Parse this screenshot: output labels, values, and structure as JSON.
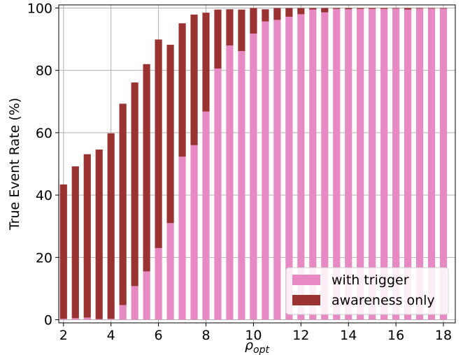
{
  "chart_data": {
    "type": "bar",
    "stacked": true,
    "x": [
      2,
      2.5,
      3,
      3.5,
      4,
      4.5,
      5,
      5.5,
      6,
      6.5,
      7,
      7.5,
      8,
      8.5,
      9,
      9.5,
      10,
      10.5,
      11,
      11.5,
      12,
      12.5,
      13,
      13.5,
      14,
      14.5,
      15,
      15.5,
      16,
      16.5,
      17,
      17.5,
      18
    ],
    "series": [
      {
        "name": "with trigger",
        "color": "#e78ac3",
        "values": [
          0.3,
          0.5,
          0.7,
          0.2,
          0.3,
          4.7,
          10.8,
          15.5,
          23,
          31,
          52.3,
          56,
          66.8,
          80.6,
          88,
          86.2,
          91.8,
          95.7,
          96.2,
          97.2,
          98,
          99.5,
          98.6,
          99.7,
          99.6,
          99.7,
          99.7,
          99.7,
          99.8,
          99.5,
          99.8,
          99.8,
          99.8
        ]
      },
      {
        "name": "awareness only",
        "color": "#9b3232",
        "values": [
          43.1,
          48.7,
          52.4,
          54.4,
          59.5,
          64.6,
          65.3,
          66.5,
          66.9,
          57.2,
          42.8,
          41.9,
          31.7,
          18.9,
          11.6,
          13.3,
          8.2,
          3.9,
          3.8,
          2.8,
          2,
          0.5,
          1.4,
          0.3,
          0.4,
          0.3,
          0.3,
          0.3,
          0.2,
          0.5,
          0.2,
          0.2,
          0.2
        ]
      }
    ],
    "bar_width": 0.3,
    "xlabel": "ρ",
    "xlabel_sub": "opt",
    "ylabel": "True Event Rate (%)",
    "xlim": [
      1.8,
      18.5
    ],
    "ylim": [
      -1,
      101
    ],
    "xticks": [
      2,
      4,
      6,
      8,
      10,
      12,
      14,
      16,
      18
    ],
    "yticks": [
      0,
      20,
      40,
      60,
      80,
      100
    ],
    "grid": true,
    "legend_position": "lower-right"
  }
}
